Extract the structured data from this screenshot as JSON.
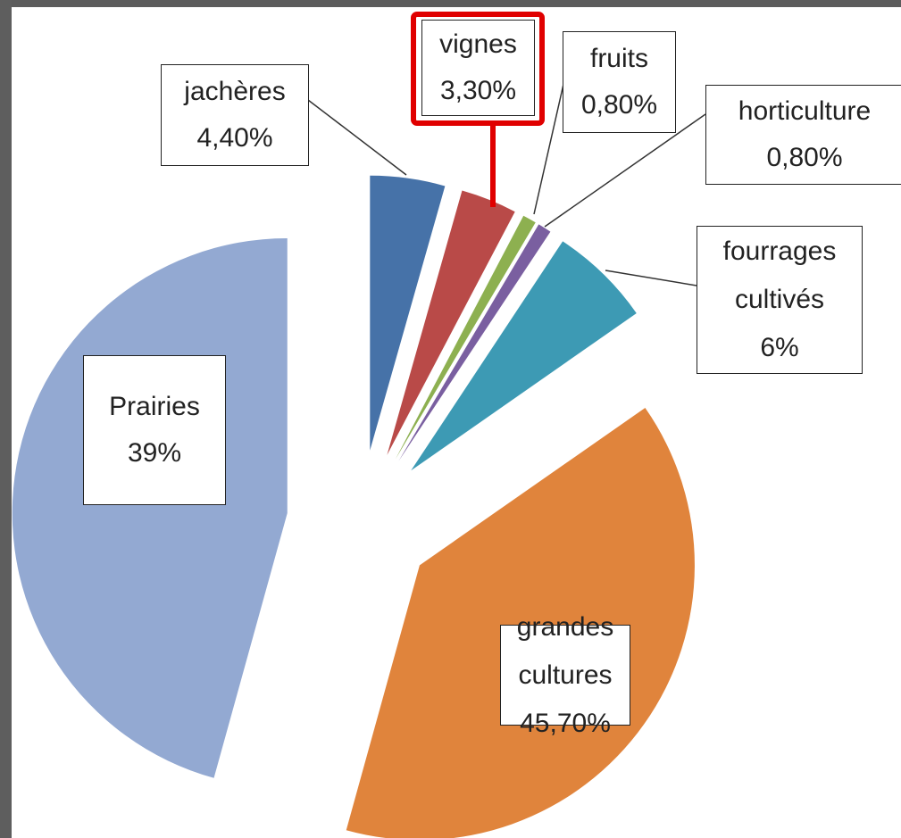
{
  "chart_data": {
    "type": "pie",
    "categories": [
      "jachères",
      "vignes",
      "fruits",
      "horticulture",
      "fourrages cultivés",
      "Prairies",
      "grandes cultures"
    ],
    "values": [
      4.4,
      3.3,
      0.8,
      0.8,
      6,
      39,
      45.7
    ],
    "value_labels": [
      "4,40%",
      "3,30%",
      "0,80%",
      "0,80%",
      "6%",
      "39%",
      "45,70%"
    ],
    "colors": [
      "#4672a8",
      "#b94a48",
      "#8db050",
      "#7a5fa0",
      "#3d9ab4",
      "#e0843c",
      "#93a9d2"
    ]
  }
}
